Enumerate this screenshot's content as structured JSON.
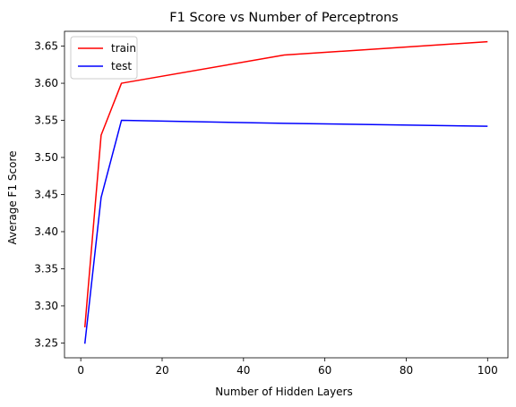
{
  "chart_data": {
    "type": "line",
    "title": "F1 Score vs Number of Perceptrons",
    "xlabel": "Number of Hidden Layers",
    "ylabel": "Average F1 Score",
    "xlim": [
      -4.0,
      105.0
    ],
    "ylim": [
      3.23,
      3.67
    ],
    "x_ticks": [
      0,
      20,
      40,
      60,
      80,
      100
    ],
    "x_tick_labels": [
      "0",
      "20",
      "40",
      "60",
      "80",
      "100"
    ],
    "y_ticks": [
      3.25,
      3.3,
      3.35,
      3.4,
      3.45,
      3.5,
      3.55,
      3.6,
      3.65
    ],
    "y_tick_labels": [
      "3.25",
      "3.30",
      "3.35",
      "3.40",
      "3.45",
      "3.50",
      "3.55",
      "3.60",
      "3.65"
    ],
    "grid": false,
    "legend_position": "upper-left",
    "x": [
      1,
      5,
      10,
      50,
      100
    ],
    "series": [
      {
        "name": "train",
        "color": "#ff0000",
        "values": [
          3.271,
          3.53,
          3.6,
          3.638,
          3.656
        ]
      },
      {
        "name": "test",
        "color": "#0000ff",
        "values": [
          3.249,
          3.446,
          3.55,
          3.546,
          3.542
        ]
      }
    ]
  }
}
